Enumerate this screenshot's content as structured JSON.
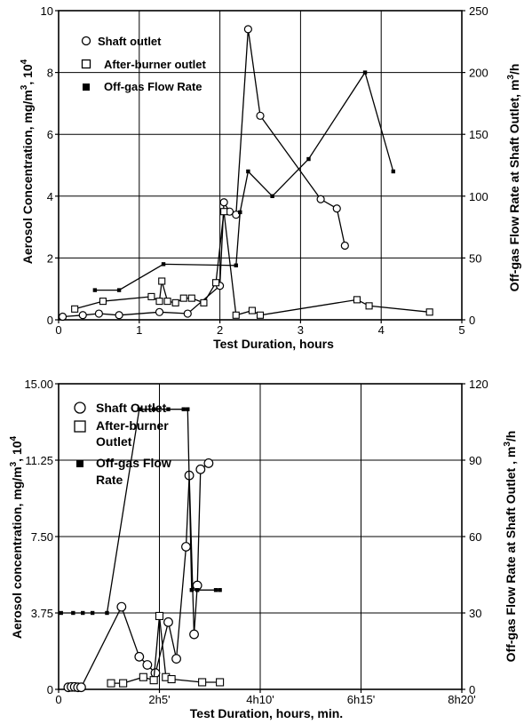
{
  "chart_data": [
    {
      "type": "line",
      "xlabel": "Test Duration, hours",
      "ylabel_left": "Aerosol Concentration, mg/m3, 10 4",
      "ylabel_right": "Off-gas Flow Rate at Shaft Outlet, m3/h",
      "xlim": [
        0,
        5
      ],
      "ylim_left": [
        0,
        10
      ],
      "ylim_right": [
        0,
        250
      ],
      "x_ticks": [
        "0",
        "1",
        "2",
        "3",
        "4",
        "5"
      ],
      "y_left_ticks": [
        "0",
        "2",
        "4",
        "6",
        "8",
        "10"
      ],
      "y_right_ticks": [
        "0",
        "50",
        "100",
        "150",
        "200",
        "250"
      ],
      "grid": true,
      "legend_position": "top-left",
      "series": [
        {
          "name": "Shaft outlet",
          "axis": "left",
          "marker": "open-circle",
          "x": [
            0.05,
            0.3,
            0.5,
            0.75,
            1.25,
            1.6,
            2.0,
            2.05,
            2.12,
            2.2,
            2.35,
            2.5,
            3.25,
            3.45,
            3.55
          ],
          "y": [
            0.1,
            0.15,
            0.2,
            0.15,
            0.25,
            0.2,
            1.1,
            3.8,
            3.5,
            3.4,
            9.4,
            6.6,
            3.9,
            3.6,
            2.4
          ]
        },
        {
          "name": "After-burner outlet",
          "axis": "left",
          "marker": "open-square",
          "x": [
            0.2,
            0.55,
            1.15,
            1.25,
            1.28,
            1.35,
            1.45,
            1.55,
            1.65,
            1.8,
            1.95,
            2.05,
            2.2,
            2.4,
            2.5,
            3.7,
            3.85,
            4.6
          ],
          "y": [
            0.35,
            0.6,
            0.75,
            0.6,
            1.25,
            0.6,
            0.55,
            0.7,
            0.7,
            0.55,
            1.2,
            3.5,
            0.15,
            0.3,
            0.15,
            0.65,
            0.45,
            0.25
          ]
        },
        {
          "name": "Off-gas Flow Rate",
          "axis": "right",
          "marker": "filled-square",
          "x": [
            0.45,
            0.75,
            1.3,
            2.2,
            2.25,
            2.35,
            2.65,
            3.1,
            3.8,
            4.15
          ],
          "y": [
            24,
            24,
            45,
            44,
            87,
            120,
            100,
            130,
            200,
            120
          ]
        }
      ]
    },
    {
      "type": "line",
      "xlabel": "Test Duration, hours, min.",
      "ylabel_left": "Aerosol concentration, mg/m3, 10 4",
      "ylabel_right": "Off-gas Flow Rate at Shaft Outlet , m3/h",
      "xlim": [
        0,
        500
      ],
      "ylim_left": [
        0,
        15
      ],
      "ylim_right": [
        0,
        120
      ],
      "x_ticks": [
        "0",
        "2h5'",
        "4h10'",
        "6h15'",
        "8h20'"
      ],
      "y_left_ticks": [
        "0",
        "3.75",
        "7.50",
        "11.25",
        "15.00"
      ],
      "y_right_ticks": [
        "0",
        "30",
        "60",
        "90",
        "120"
      ],
      "grid": true,
      "legend_position": "top-left",
      "series": [
        {
          "name": "Shaft Outlet",
          "axis": "left",
          "marker": "open-circle",
          "x": [
            12,
            16,
            20,
            24,
            28,
            78,
            100,
            110,
            120,
            136,
            146,
            158,
            162,
            168,
            172,
            176,
            186
          ],
          "y": [
            0.1,
            0.12,
            0.12,
            0.1,
            0.1,
            4.05,
            1.6,
            1.2,
            0.8,
            3.3,
            1.5,
            7.0,
            10.5,
            2.7,
            5.1,
            10.8,
            11.1
          ]
        },
        {
          "name": "After-burner Outlet",
          "axis": "left",
          "marker": "open-square",
          "x": [
            65,
            80,
            105,
            118,
            125,
            133,
            140,
            178,
            200
          ],
          "y": [
            0.3,
            0.3,
            0.6,
            0.45,
            3.6,
            0.6,
            0.5,
            0.35,
            0.35
          ]
        },
        {
          "name": "Off-gas Flow Rate",
          "axis": "right",
          "marker": "filled-square",
          "x": [
            3,
            18,
            30,
            42,
            60,
            100,
            118,
            136,
            155,
            160,
            165,
            172,
            195,
            200
          ],
          "y": [
            30,
            30,
            30,
            30,
            30,
            110,
            110,
            110,
            110,
            110,
            39,
            39,
            39,
            39
          ]
        }
      ]
    }
  ]
}
